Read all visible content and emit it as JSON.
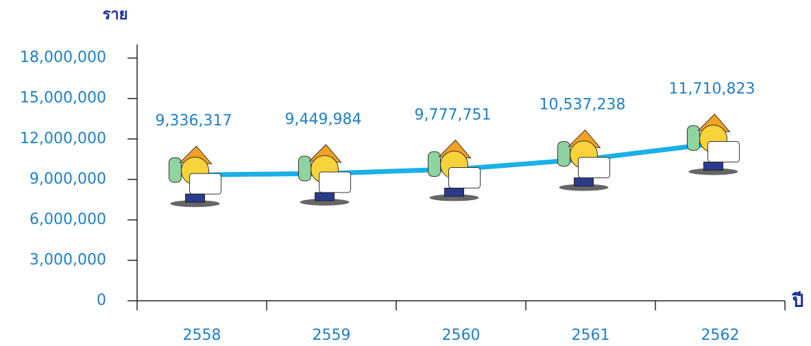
{
  "chart_data": {
    "type": "line",
    "y_label": "ราย",
    "x_label": "ปี",
    "categories": [
      "2558",
      "2559",
      "2560",
      "2561",
      "2562"
    ],
    "values": [
      9336317,
      9449984,
      9777751,
      10537238,
      11710823
    ],
    "value_labels": [
      "9,336,317",
      "9,449,984",
      "9,777,751",
      "10,537,238",
      "11,710,823"
    ],
    "color": "#1ab0e8",
    "ylim": [
      0,
      19000000
    ],
    "yticks": [
      0,
      {
        "value": 3000000,
        "label": "3,000,000"
      },
      {
        "value": 6000000,
        "label": "6,000,000"
      },
      {
        "value": 9000000,
        "label": "9,000,000"
      },
      {
        "value": 12000000,
        "label": "12,000,000"
      },
      {
        "value": 15000000,
        "label": "15,000,000"
      },
      {
        "value": 18000000,
        "label": "18,000,000"
      }
    ],
    "grid": false
  }
}
